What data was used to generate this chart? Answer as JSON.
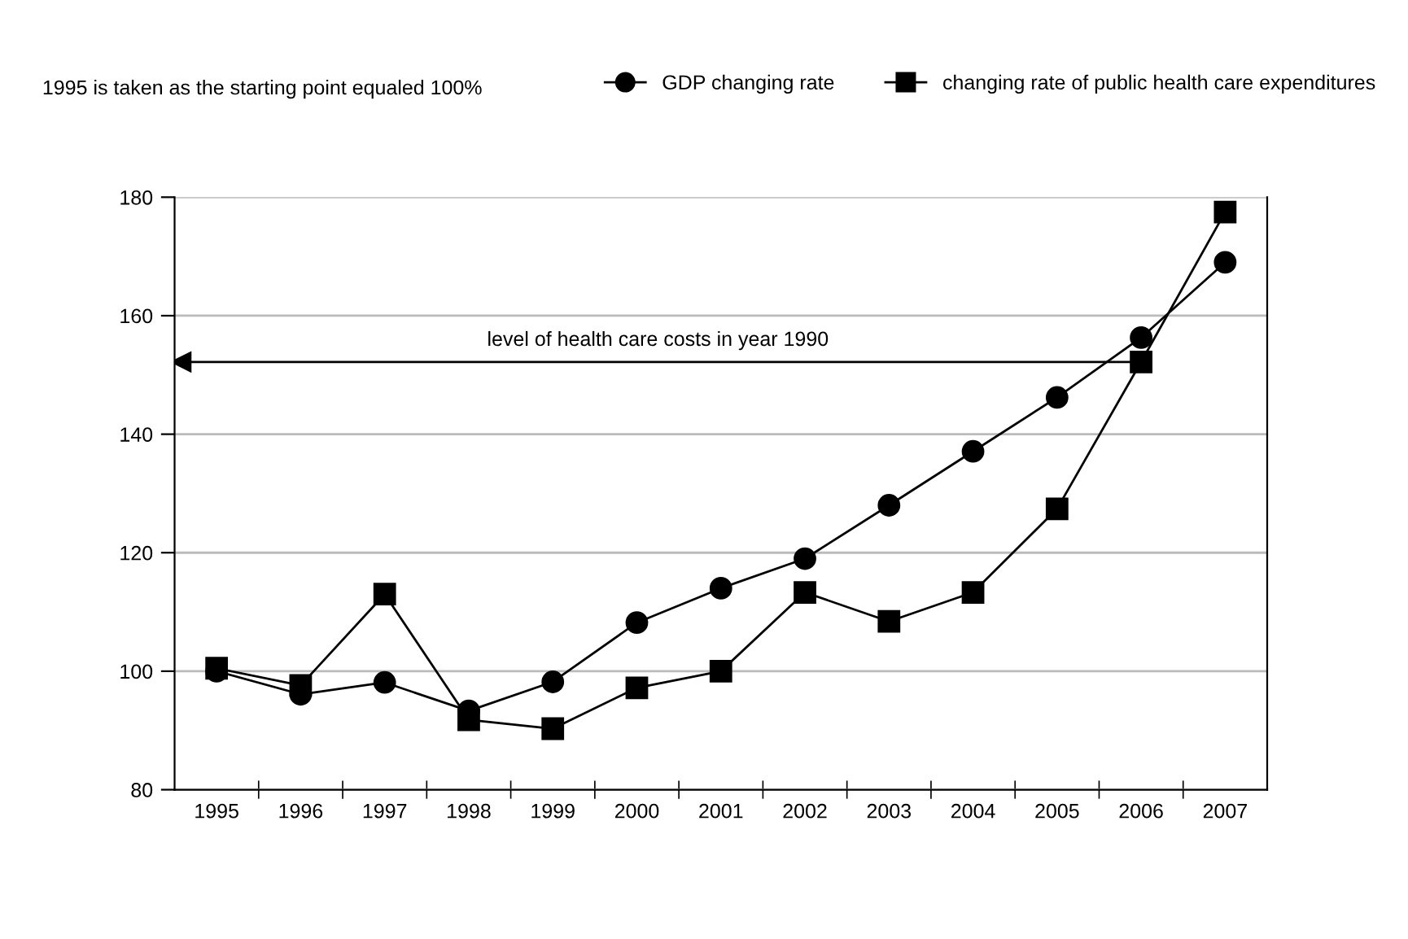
{
  "chart_data": {
    "type": "line",
    "categories": [
      "1995",
      "1996",
      "1997",
      "1998",
      "1999",
      "2000",
      "2001",
      "2002",
      "2003",
      "2004",
      "2005",
      "2006",
      "2007"
    ],
    "series": [
      {
        "name": "GDP changing rate",
        "color": "#000000",
        "marker": "circle",
        "values": [
          100,
          96.1,
          98.1,
          93.3,
          98.2,
          108.2,
          114,
          119,
          128,
          137.1,
          146.2,
          156.3,
          169
        ]
      },
      {
        "name": "changing rate of public health care expenditures",
        "color": "#000000",
        "marker": "square",
        "values": [
          100.5,
          97.6,
          113,
          91.8,
          90.3,
          97.2,
          100,
          113.3,
          108.4,
          113.3,
          127.4,
          152.2,
          177.5
        ]
      }
    ],
    "ylim": [
      80,
      180
    ],
    "yticks": [
      80,
      100,
      120,
      140,
      160,
      180
    ],
    "grid": "y",
    "legend": "top right",
    "line_style": "solid",
    "ref_lines": [
      {
        "axis": "y",
        "value": 152.2,
        "label": "level of health care costs in year 1990",
        "color": "#000000"
      }
    ],
    "annotations": [
      "1995 is taken as the starting point equaled 100%"
    ]
  }
}
